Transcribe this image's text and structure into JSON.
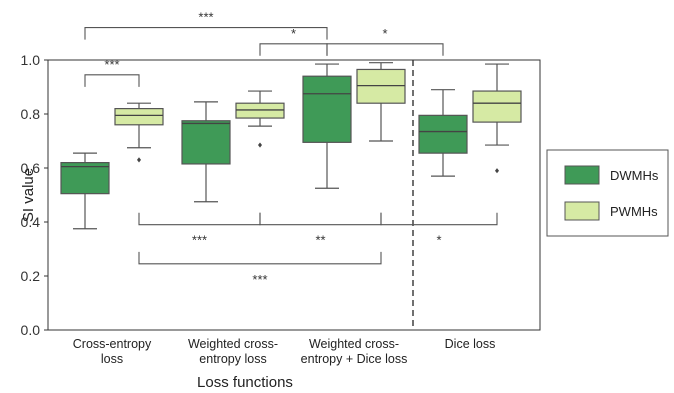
{
  "chart_data": {
    "type": "box",
    "title": "",
    "xlabel": "Loss functions",
    "ylabel": "SI value",
    "ylim": [
      0.0,
      1.0
    ],
    "yticks": [
      "0.0",
      "0.2",
      "0.4",
      "0.6",
      "0.8",
      "1.0"
    ],
    "grid": false,
    "legend_position": "right",
    "categories": [
      [
        "Cross-entropy",
        "loss"
      ],
      [
        "Weighted cross-",
        "entropy loss"
      ],
      [
        "Weighted cross-",
        "entropy + Dice loss"
      ],
      [
        "Dice loss"
      ]
    ],
    "series": [
      {
        "name": "DWMHs",
        "color": "#3f9a57",
        "boxes": [
          {
            "whislo": 0.375,
            "q1": 0.505,
            "med": 0.605,
            "q3": 0.62,
            "whishi": 0.655,
            "fliers": []
          },
          {
            "whislo": 0.475,
            "q1": 0.615,
            "med": 0.765,
            "q3": 0.775,
            "whishi": 0.845,
            "fliers": []
          },
          {
            "whislo": 0.525,
            "q1": 0.695,
            "med": 0.875,
            "q3": 0.94,
            "whishi": 0.985,
            "fliers": []
          },
          {
            "whislo": 0.57,
            "q1": 0.655,
            "med": 0.735,
            "q3": 0.795,
            "whishi": 0.89,
            "fliers": []
          }
        ]
      },
      {
        "name": "PWMHs",
        "color": "#d6eaa4",
        "boxes": [
          {
            "whislo": 0.675,
            "q1": 0.76,
            "med": 0.795,
            "q3": 0.82,
            "whishi": 0.84,
            "fliers": [
              0.63
            ]
          },
          {
            "whislo": 0.755,
            "q1": 0.785,
            "med": 0.815,
            "q3": 0.84,
            "whishi": 0.885,
            "fliers": [
              0.685
            ]
          },
          {
            "whislo": 0.7,
            "q1": 0.84,
            "med": 0.905,
            "q3": 0.965,
            "whishi": 0.99,
            "fliers": []
          },
          {
            "whislo": 0.685,
            "q1": 0.77,
            "med": 0.84,
            "q3": 0.885,
            "whishi": 0.985,
            "fliers": [
              0.59
            ]
          }
        ]
      }
    ],
    "vertical_separator_after_category": 2,
    "significance": [
      {
        "label": "***",
        "from": [
          0,
          0
        ],
        "to": [
          2,
          0
        ],
        "level": 1.12,
        "side": "above"
      },
      {
        "label": "*",
        "from": [
          1,
          1
        ],
        "to": [
          2,
          0
        ],
        "level": 1.06,
        "side": "above"
      },
      {
        "label": "*",
        "from": [
          2,
          0
        ],
        "to": [
          3,
          0
        ],
        "level": 1.06,
        "side": "above"
      },
      {
        "label": "***",
        "from": [
          0,
          0
        ],
        "to": [
          0,
          1
        ],
        "level": 0.945,
        "side": "above"
      },
      {
        "label": "***",
        "from": [
          0,
          1
        ],
        "to": [
          1,
          1
        ],
        "level": 0.39,
        "side": "below"
      },
      {
        "label": "**",
        "from": [
          1,
          1
        ],
        "to": [
          2,
          1
        ],
        "level": 0.39,
        "side": "below"
      },
      {
        "label": "*",
        "from": [
          2,
          1
        ],
        "to": [
          3,
          1
        ],
        "level": 0.39,
        "side": "below"
      },
      {
        "label": "***",
        "from": [
          0,
          1
        ],
        "to": [
          2,
          1
        ],
        "level": 0.245,
        "side": "below"
      }
    ]
  }
}
